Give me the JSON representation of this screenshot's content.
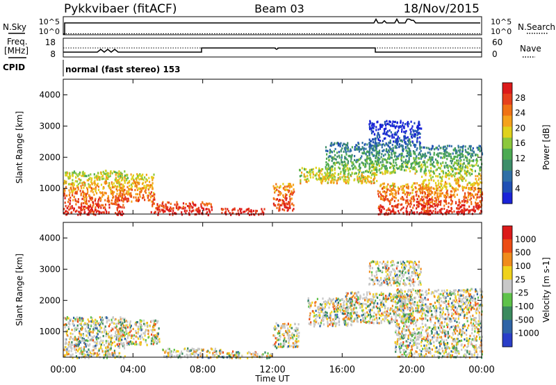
{
  "header": {
    "station": "Pykkvibaer (fitACF)",
    "beam": "Beam 03",
    "date": "18/Nov/2015"
  },
  "top_panels": {
    "nsky_label": "N.Sky",
    "nsky_ticks": [
      "10^5",
      "10^0"
    ],
    "nsearch_label": "N.Search",
    "nsearch_ticks": [
      "10^5",
      "10^0"
    ],
    "freq_label_1": "Freq.",
    "freq_label_2": "[MHz]",
    "freq_ticks": [
      "18",
      "8"
    ],
    "nave_label": "Nave",
    "nave_ticks": [
      "60",
      "0"
    ],
    "cpid_label": "CPID",
    "cpid_text": "normal (fast stereo) 153"
  },
  "chart_data": [
    {
      "type": "heatmap",
      "name": "power",
      "ylabel": "Slant Range [km]",
      "xlabel": "Time UT",
      "xlim": [
        0,
        24
      ],
      "ylim": [
        180,
        4500
      ],
      "yticks": [
        "1000",
        "2000",
        "3000",
        "4000"
      ],
      "xtick_labels": [
        "00:00",
        "04:00",
        "08:00",
        "12:00",
        "16:00",
        "20:00",
        "00:00"
      ],
      "colorbar_label": "Power [dB]",
      "colorbar_ticks": [
        "4",
        "8",
        "12",
        "16",
        "20",
        "24",
        "28"
      ],
      "colorbar_colors": [
        "#1a23d8",
        "#1f4fb4",
        "#2f6fa6",
        "#3d8e6a",
        "#4caa52",
        "#8cc83c",
        "#e0d21c",
        "#f5a21c",
        "#f07214",
        "#e6401c",
        "#dc1a1a"
      ],
      "scatter_regions": [
        {
          "t": [
            0.0,
            3.5
          ],
          "r": [
            180,
            1600
          ]
        },
        {
          "t": [
            3.0,
            5.2
          ],
          "r": [
            600,
            1500
          ]
        },
        {
          "t": [
            5.0,
            8.5
          ],
          "r": [
            180,
            600
          ]
        },
        {
          "t": [
            9.0,
            11.5
          ],
          "r": [
            180,
            400
          ]
        },
        {
          "t": [
            12.0,
            13.2
          ],
          "r": [
            300,
            1200
          ]
        },
        {
          "t": [
            13.5,
            15.5
          ],
          "r": [
            1200,
            1700
          ]
        },
        {
          "t": [
            15.0,
            18.0
          ],
          "r": [
            1200,
            2500
          ]
        },
        {
          "t": [
            17.5,
            20.5
          ],
          "r": [
            1500,
            3200
          ]
        },
        {
          "t": [
            18.0,
            21.0
          ],
          "r": [
            200,
            1200
          ]
        },
        {
          "t": [
            20.5,
            24.0
          ],
          "r": [
            200,
            2400
          ]
        }
      ]
    },
    {
      "type": "heatmap",
      "name": "velocity",
      "ylabel": "Slant Range [km]",
      "xlabel": "Time UT",
      "xlim": [
        0,
        24
      ],
      "ylim": [
        180,
        4500
      ],
      "yticks": [
        "1000",
        "2000",
        "3000",
        "4000"
      ],
      "xtick_labels": [
        "00:00",
        "04:00",
        "08:00",
        "12:00",
        "16:00",
        "20:00",
        "00:00"
      ],
      "colorbar_label": "Velocity [m s-1]",
      "colorbar_ticks": [
        "1000",
        "500",
        "100",
        "25",
        "-25",
        "-100",
        "-500",
        "-1000"
      ],
      "colorbar_colors": [
        "#2a3ec8",
        "#2f64a6",
        "#3b8a5e",
        "#5ec24a",
        "#c8c8c8",
        "#f0d21c",
        "#f08c1c",
        "#ec4c14",
        "#dc1a1a"
      ],
      "scatter_regions": [
        {
          "t": [
            0.0,
            3.5
          ],
          "r": [
            180,
            1500
          ]
        },
        {
          "t": [
            3.0,
            5.5
          ],
          "r": [
            600,
            1400
          ]
        },
        {
          "t": [
            5.5,
            9.0
          ],
          "r": [
            180,
            500
          ]
        },
        {
          "t": [
            9.0,
            12.0
          ],
          "r": [
            180,
            400
          ]
        },
        {
          "t": [
            12.0,
            13.5
          ],
          "r": [
            500,
            1300
          ]
        },
        {
          "t": [
            14.0,
            16.5
          ],
          "r": [
            1200,
            2100
          ]
        },
        {
          "t": [
            16.0,
            20.0
          ],
          "r": [
            1300,
            2300
          ]
        },
        {
          "t": [
            17.5,
            20.5
          ],
          "r": [
            2500,
            3300
          ]
        },
        {
          "t": [
            19.0,
            24.0
          ],
          "r": [
            200,
            2400
          ]
        }
      ]
    }
  ],
  "x_axis": {
    "ticks": [
      "00:00",
      "04:00",
      "08:00",
      "12:00",
      "16:00",
      "20:00",
      "00:00"
    ],
    "label": "Time UT"
  }
}
